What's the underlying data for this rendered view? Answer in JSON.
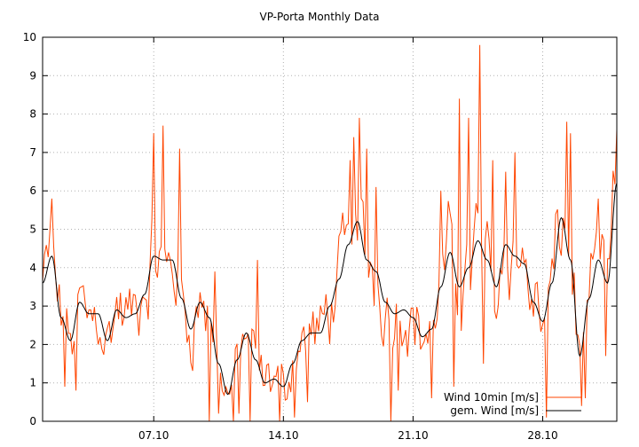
{
  "chart_data": {
    "type": "line",
    "title": "VP-Porta Monthly Data",
    "xlabel": "",
    "ylabel": "",
    "ylim": [
      0,
      10
    ],
    "xlim": [
      1,
      32
    ],
    "yticks": [
      0,
      1,
      2,
      3,
      4,
      5,
      6,
      7,
      8,
      9,
      10
    ],
    "xticks": [
      {
        "day": 7,
        "label": "07.10"
      },
      {
        "day": 14,
        "label": "14.10"
      },
      {
        "day": 21,
        "label": "21.10"
      },
      {
        "day": 28,
        "label": "28.10"
      }
    ],
    "grid": true,
    "legend_position": "bottom-right",
    "series": [
      {
        "name": "Wind 10min [m/s]",
        "color": "#ff4500",
        "style": "raw",
        "samples_per_day": 10,
        "smooth_points": [
          [
            1.0,
            3.6
          ],
          [
            1.5,
            4.3
          ],
          [
            2.0,
            2.7
          ],
          [
            2.5,
            2.1
          ],
          [
            3.0,
            3.1
          ],
          [
            3.5,
            2.8
          ],
          [
            4.0,
            2.8
          ],
          [
            4.5,
            2.1
          ],
          [
            5.0,
            2.9
          ],
          [
            5.5,
            2.7
          ],
          [
            6.0,
            2.8
          ],
          [
            6.5,
            3.3
          ],
          [
            7.0,
            4.3
          ],
          [
            7.5,
            4.2
          ],
          [
            8.0,
            4.2
          ],
          [
            8.5,
            3.2
          ],
          [
            9.0,
            2.4
          ],
          [
            9.5,
            3.1
          ],
          [
            10.0,
            2.7
          ],
          [
            10.5,
            1.5
          ],
          [
            11.0,
            0.7
          ],
          [
            11.5,
            1.6
          ],
          [
            12.0,
            2.3
          ],
          [
            12.5,
            1.6
          ],
          [
            13.0,
            1.0
          ],
          [
            13.5,
            1.1
          ],
          [
            14.0,
            0.9
          ],
          [
            14.5,
            1.5
          ],
          [
            15.0,
            2.1
          ],
          [
            15.5,
            2.3
          ],
          [
            16.0,
            2.3
          ],
          [
            16.5,
            3.0
          ],
          [
            17.0,
            3.7
          ],
          [
            17.5,
            4.6
          ],
          [
            18.0,
            5.2
          ],
          [
            18.5,
            4.2
          ],
          [
            19.0,
            3.9
          ],
          [
            19.5,
            3.1
          ],
          [
            20.0,
            2.8
          ],
          [
            20.5,
            2.9
          ],
          [
            21.0,
            2.7
          ],
          [
            21.5,
            2.2
          ],
          [
            22.0,
            2.4
          ],
          [
            22.5,
            3.5
          ],
          [
            23.0,
            4.4
          ],
          [
            23.5,
            3.5
          ],
          [
            24.0,
            4.0
          ],
          [
            24.5,
            4.7
          ],
          [
            25.0,
            4.2
          ],
          [
            25.5,
            3.5
          ],
          [
            26.0,
            4.6
          ],
          [
            26.5,
            4.3
          ],
          [
            27.0,
            4.1
          ],
          [
            27.5,
            3.1
          ],
          [
            28.0,
            2.6
          ],
          [
            28.5,
            3.6
          ],
          [
            29.0,
            5.3
          ],
          [
            29.5,
            4.2
          ],
          [
            30.0,
            1.7
          ],
          [
            30.5,
            3.2
          ],
          [
            31.0,
            4.2
          ],
          [
            31.5,
            3.6
          ],
          [
            32.0,
            6.2
          ]
        ],
        "peaks": [
          [
            1.5,
            5.8
          ],
          [
            7.0,
            7.5
          ],
          [
            7.5,
            7.7
          ],
          [
            8.4,
            7.1
          ],
          [
            10.3,
            3.9
          ],
          [
            12.6,
            4.2
          ],
          [
            17.6,
            6.8
          ],
          [
            17.8,
            7.4
          ],
          [
            18.1,
            7.9
          ],
          [
            18.5,
            7.1
          ],
          [
            19.0,
            6.1
          ],
          [
            22.5,
            6.0
          ],
          [
            23.5,
            8.4
          ],
          [
            24.0,
            7.9
          ],
          [
            24.6,
            9.8
          ],
          [
            25.3,
            6.8
          ],
          [
            26.0,
            6.5
          ],
          [
            26.5,
            7.0
          ],
          [
            29.3,
            7.8
          ],
          [
            29.5,
            7.5
          ],
          [
            31.0,
            5.8
          ],
          [
            32.0,
            7.6
          ]
        ],
        "dips": [
          [
            2.2,
            0.9
          ],
          [
            2.8,
            0.8
          ],
          [
            10.0,
            0.0
          ],
          [
            10.5,
            0.2
          ],
          [
            11.3,
            0.0
          ],
          [
            11.6,
            0.2
          ],
          [
            12.2,
            0.0
          ],
          [
            13.8,
            0.0
          ],
          [
            14.6,
            0.1
          ],
          [
            15.3,
            0.5
          ],
          [
            19.8,
            0.0
          ],
          [
            20.2,
            0.8
          ],
          [
            22.0,
            0.6
          ],
          [
            23.2,
            0.9
          ],
          [
            24.8,
            1.5
          ],
          [
            28.2,
            0.1
          ],
          [
            30.1,
            0.4
          ],
          [
            30.3,
            0.6
          ],
          [
            31.4,
            1.7
          ]
        ]
      },
      {
        "name": "gem. Wind [m/s]",
        "color": "#000000",
        "style": "smooth",
        "points": [
          [
            1.0,
            3.6
          ],
          [
            1.5,
            4.3
          ],
          [
            2.0,
            2.7
          ],
          [
            2.5,
            2.1
          ],
          [
            3.0,
            3.1
          ],
          [
            3.5,
            2.8
          ],
          [
            4.0,
            2.8
          ],
          [
            4.5,
            2.1
          ],
          [
            5.0,
            2.9
          ],
          [
            5.5,
            2.7
          ],
          [
            6.0,
            2.8
          ],
          [
            6.5,
            3.3
          ],
          [
            7.0,
            4.3
          ],
          [
            7.5,
            4.2
          ],
          [
            8.0,
            4.2
          ],
          [
            8.5,
            3.2
          ],
          [
            9.0,
            2.4
          ],
          [
            9.5,
            3.1
          ],
          [
            10.0,
            2.7
          ],
          [
            10.5,
            1.5
          ],
          [
            11.0,
            0.7
          ],
          [
            11.5,
            1.6
          ],
          [
            12.0,
            2.3
          ],
          [
            12.5,
            1.6
          ],
          [
            13.0,
            1.0
          ],
          [
            13.5,
            1.1
          ],
          [
            14.0,
            0.9
          ],
          [
            14.5,
            1.5
          ],
          [
            15.0,
            2.1
          ],
          [
            15.5,
            2.3
          ],
          [
            16.0,
            2.3
          ],
          [
            16.5,
            3.0
          ],
          [
            17.0,
            3.7
          ],
          [
            17.5,
            4.6
          ],
          [
            18.0,
            5.2
          ],
          [
            18.5,
            4.2
          ],
          [
            19.0,
            3.9
          ],
          [
            19.5,
            3.1
          ],
          [
            20.0,
            2.8
          ],
          [
            20.5,
            2.9
          ],
          [
            21.0,
            2.7
          ],
          [
            21.5,
            2.2
          ],
          [
            22.0,
            2.4
          ],
          [
            22.5,
            3.5
          ],
          [
            23.0,
            4.4
          ],
          [
            23.5,
            3.5
          ],
          [
            24.0,
            4.0
          ],
          [
            24.5,
            4.7
          ],
          [
            25.0,
            4.2
          ],
          [
            25.5,
            3.5
          ],
          [
            26.0,
            4.6
          ],
          [
            26.5,
            4.3
          ],
          [
            27.0,
            4.1
          ],
          [
            27.5,
            3.1
          ],
          [
            28.0,
            2.6
          ],
          [
            28.5,
            3.6
          ],
          [
            29.0,
            5.3
          ],
          [
            29.5,
            4.2
          ],
          [
            30.0,
            1.7
          ],
          [
            30.5,
            3.2
          ],
          [
            31.0,
            4.2
          ],
          [
            31.5,
            3.6
          ],
          [
            32.0,
            6.2
          ]
        ]
      }
    ]
  }
}
